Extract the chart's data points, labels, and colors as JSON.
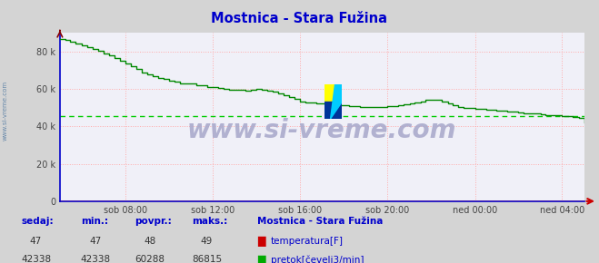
{
  "title": "Mostnica - Stara Fužina",
  "title_color": "#0000cc",
  "bg_color": "#d4d4d4",
  "plot_bg_color": "#f0f0f8",
  "watermark": "www.si-vreme.com",
  "ylim": [
    0,
    90000
  ],
  "yticks": [
    0,
    20000,
    40000,
    60000,
    80000
  ],
  "ytick_labels": [
    "0",
    "20 k",
    "40 k",
    "60 k",
    "80 k"
  ],
  "grid_color": "#ffaaaa",
  "xticklabels": [
    "sob 08:00",
    "sob 12:00",
    "sob 16:00",
    "sob 20:00",
    "ned 00:00",
    "ned 04:00"
  ],
  "flow_color": "#008800",
  "temp_color": "#cc0000",
  "avg_line_color": "#00cc00",
  "avg_line_value": 45500,
  "temp_value_const": 47,
  "temp_max": 49,
  "temp_min": 47,
  "temp_avg": 48,
  "flow_sedaj": 42338,
  "flow_min": 42338,
  "flow_avg": 60288,
  "flow_max": 86815,
  "text_color": "#0000cc",
  "sidebar_text": "www.si-vreme.com",
  "flow_data_x": [
    0.0,
    0.01,
    0.02,
    0.03,
    0.042,
    0.052,
    0.062,
    0.073,
    0.083,
    0.094,
    0.104,
    0.115,
    0.125,
    0.135,
    0.146,
    0.156,
    0.167,
    0.177,
    0.188,
    0.198,
    0.208,
    0.219,
    0.229,
    0.24,
    0.25,
    0.26,
    0.271,
    0.281,
    0.292,
    0.302,
    0.313,
    0.323,
    0.333,
    0.344,
    0.354,
    0.365,
    0.375,
    0.385,
    0.396,
    0.406,
    0.417,
    0.427,
    0.438,
    0.448,
    0.458,
    0.469,
    0.479,
    0.49,
    0.5,
    0.51,
    0.521,
    0.531,
    0.542,
    0.552,
    0.563,
    0.573,
    0.583,
    0.594,
    0.604,
    0.615,
    0.625,
    0.635,
    0.646,
    0.656,
    0.667,
    0.677,
    0.688,
    0.698,
    0.708,
    0.719,
    0.729,
    0.74,
    0.75,
    0.76,
    0.771,
    0.781,
    0.792,
    0.802,
    0.813,
    0.823,
    0.833,
    0.844,
    0.854,
    0.865,
    0.875,
    0.885,
    0.896,
    0.906,
    0.917,
    0.927,
    0.938,
    0.948,
    0.958,
    0.969,
    0.979,
    0.99,
    1.0
  ],
  "flow_data_y": [
    86815,
    86200,
    85500,
    84500,
    83500,
    82500,
    81500,
    80200,
    79000,
    78000,
    76500,
    75000,
    73500,
    72000,
    70500,
    69000,
    68000,
    67000,
    66000,
    65200,
    64500,
    63800,
    63200,
    63000,
    62800,
    62200,
    61800,
    61200,
    60800,
    60400,
    60000,
    59700,
    59500,
    59400,
    59300,
    59500,
    60000,
    59800,
    59200,
    58500,
    57500,
    56500,
    55500,
    54500,
    53500,
    53000,
    52800,
    52500,
    52200,
    52000,
    51800,
    51500,
    51200,
    51000,
    50800,
    50600,
    50500,
    50400,
    50500,
    50600,
    50800,
    51000,
    51500,
    52000,
    52500,
    53000,
    53500,
    54000,
    54200,
    54000,
    53500,
    52500,
    51500,
    50500,
    50000,
    49800,
    49500,
    49200,
    49000,
    48800,
    48500,
    48200,
    48000,
    47800,
    47500,
    47200,
    47000,
    46800,
    46500,
    46200,
    46000,
    45800,
    45600,
    45400,
    45200,
    44500,
    42338
  ]
}
